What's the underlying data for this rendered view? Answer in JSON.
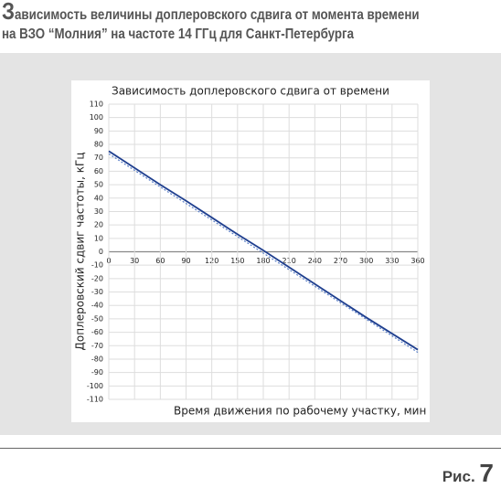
{
  "heading": {
    "line1": "Зависимость величины доплеровского сдвига от момента времени",
    "line2": "на ВЗО “Молния” на частоте 14 ГГц для  Санкт-Петербурга"
  },
  "figure_label": "Рис. 7",
  "chart_data": {
    "type": "line",
    "title": "Зависимость доплеровского сдвига от времени",
    "x_label": "Время движения по рабочему участку, мин",
    "y_label": "Доплеровский сдвиг частоты, кГц",
    "x": [
      0,
      30,
      60,
      90,
      120,
      150,
      180,
      210,
      240,
      270,
      300,
      330,
      360
    ],
    "series": [
      {
        "color": "#1f3f8f",
        "style": "solid",
        "values": [
          75,
          62.5,
          50,
          38,
          25.5,
          13,
          1,
          -11.5,
          -24,
          -36.5,
          -49,
          -61,
          -73
        ]
      },
      {
        "color": "#5a7fc8",
        "style": "dotted",
        "values": [
          73,
          60.7,
          48.3,
          36,
          23.7,
          11.3,
          -1,
          -13.3,
          -25.7,
          -38,
          -50.3,
          -62.7,
          -75
        ]
      }
    ],
    "xlim": [
      0,
      360
    ],
    "xticks": [
      0,
      30,
      60,
      90,
      120,
      150,
      180,
      210,
      240,
      270,
      300,
      330,
      360
    ],
    "ylim": [
      -110,
      110
    ],
    "yticks": [
      -110,
      -100,
      -90,
      -80,
      -70,
      -60,
      -50,
      -40,
      -30,
      -20,
      -10,
      0,
      10,
      20,
      30,
      40,
      50,
      60,
      70,
      80,
      90,
      100,
      110
    ],
    "grid": true
  }
}
